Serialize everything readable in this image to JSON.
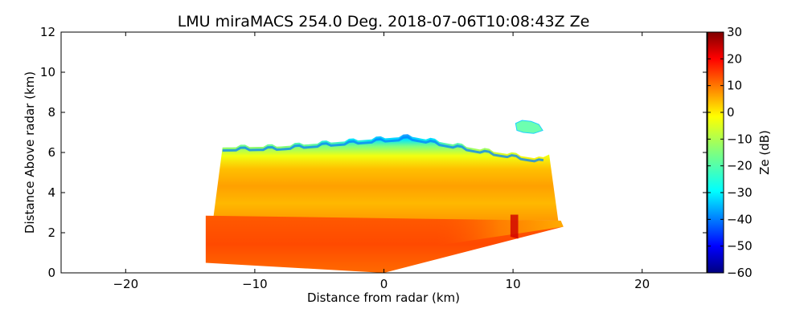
{
  "chart_data": {
    "type": "heatmap",
    "title": "LMU miraMACS 254.0 Deg. 2018-07-06T10:08:43Z  Ze",
    "xlabel": "Distance from radar (km)",
    "ylabel": "Distance Above radar  (km)",
    "xlim": [
      -25,
      25
    ],
    "ylim": [
      0,
      12
    ],
    "xticks": [
      -20,
      -10,
      0,
      10,
      20
    ],
    "yticks": [
      0,
      2,
      4,
      6,
      8,
      10,
      12
    ],
    "grid": false,
    "colorbar": {
      "label": "Ze (dB)",
      "range": [
        -60,
        30
      ],
      "ticks": [
        30,
        20,
        10,
        0,
        -10,
        -20,
        -30,
        -40,
        -50,
        -60
      ],
      "colormap": "jet"
    },
    "regions": [
      {
        "description_level": "cloud_top_edge",
        "x_range": [
          -12.5,
          12.5
        ],
        "top_height_km": [
          6.2,
          6.8
        ],
        "ze_dB": [
          -35,
          -20
        ]
      },
      {
        "description_level": "upper_cloud",
        "x_range": [
          -13,
          13
        ],
        "height_km": [
          3,
          6
        ],
        "ze_dB": [
          -5,
          8
        ]
      },
      {
        "description_level": "rain_layer",
        "x_range": [
          -13.8,
          13.8
        ],
        "height_km": [
          0,
          2.8
        ],
        "ze_dB": [
          12,
          25
        ]
      },
      {
        "description_level": "isolated_echo",
        "x_range": [
          10.2,
          12.3
        ],
        "height_km": [
          7,
          7.5
        ],
        "ze_dB": [
          -20,
          -15
        ]
      }
    ]
  }
}
